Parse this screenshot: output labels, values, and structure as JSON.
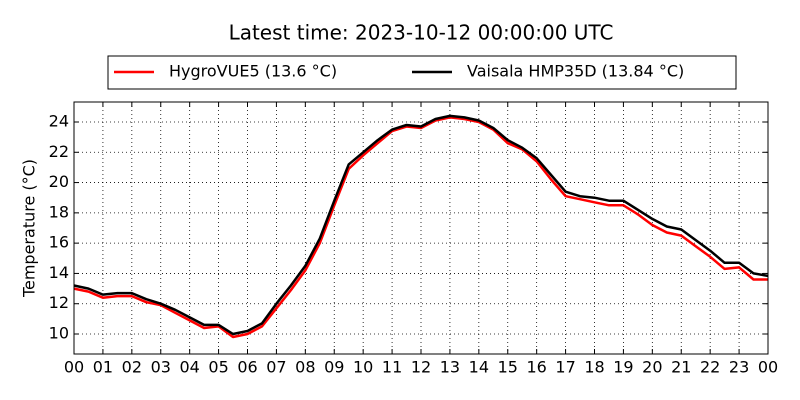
{
  "chart_data": {
    "type": "line",
    "title": "Latest time: 2023-10-12 00:00:00 UTC",
    "y_label": "Temperature (°C)",
    "x": [
      0,
      0.5,
      1,
      1.5,
      2,
      2.5,
      3,
      3.5,
      4,
      4.5,
      5,
      5.5,
      6,
      6.5,
      7,
      7.5,
      8,
      8.5,
      9,
      9.5,
      10,
      10.5,
      11,
      11.5,
      12,
      12.5,
      13,
      13.5,
      14,
      14.5,
      15,
      15.5,
      16,
      16.5,
      17,
      17.5,
      18,
      18.5,
      19,
      19.5,
      20,
      20.5,
      21,
      21.5,
      22,
      22.5,
      23,
      23.5,
      24
    ],
    "series": [
      {
        "name": "HygroVUE5 (13.6 °C)",
        "color": "#ff0000",
        "values": [
          13.0,
          12.8,
          12.4,
          12.5,
          12.5,
          12.1,
          11.9,
          11.4,
          10.9,
          10.4,
          10.5,
          9.8,
          10.0,
          10.5,
          11.7,
          12.9,
          14.2,
          16.0,
          18.5,
          20.9,
          21.8,
          22.6,
          23.4,
          23.7,
          23.6,
          24.1,
          24.3,
          24.2,
          24.0,
          23.5,
          22.6,
          22.2,
          21.4,
          20.2,
          19.1,
          18.9,
          18.7,
          18.5,
          18.5,
          17.9,
          17.2,
          16.7,
          16.5,
          15.8,
          15.1,
          14.3,
          14.4,
          13.6,
          13.6
        ]
      },
      {
        "name": "Vaisala HMP35D (13.84 °C)",
        "color": "#000000",
        "values": [
          13.2,
          13.0,
          12.6,
          12.7,
          12.7,
          12.3,
          12.0,
          11.6,
          11.1,
          10.6,
          10.6,
          10.0,
          10.2,
          10.7,
          12.0,
          13.2,
          14.5,
          16.3,
          18.8,
          21.2,
          22.0,
          22.8,
          23.5,
          23.8,
          23.7,
          24.2,
          24.4,
          24.3,
          24.1,
          23.6,
          22.8,
          22.3,
          21.6,
          20.5,
          19.4,
          19.1,
          19.0,
          18.8,
          18.8,
          18.2,
          17.6,
          17.1,
          16.9,
          16.2,
          15.5,
          14.7,
          14.7,
          14.0,
          13.84
        ]
      }
    ],
    "xlim": [
      0,
      24
    ],
    "ylim": [
      8.68,
      25.32
    ],
    "xticks": [
      {
        "value": 0,
        "label": "00"
      },
      {
        "value": 1,
        "label": "01"
      },
      {
        "value": 2,
        "label": "02"
      },
      {
        "value": 3,
        "label": "03"
      },
      {
        "value": 4,
        "label": "04"
      },
      {
        "value": 5,
        "label": "05"
      },
      {
        "value": 6,
        "label": "06"
      },
      {
        "value": 7,
        "label": "07"
      },
      {
        "value": 8,
        "label": "08"
      },
      {
        "value": 9,
        "label": "09"
      },
      10,
      11,
      12,
      13,
      14,
      15,
      16,
      17,
      18,
      19,
      20,
      21,
      22,
      23,
      {
        "value": 24,
        "label": "00"
      }
    ],
    "yticks": [
      10,
      12,
      14,
      16,
      18,
      20,
      22,
      24
    ],
    "grid": true,
    "legend": "top"
  }
}
